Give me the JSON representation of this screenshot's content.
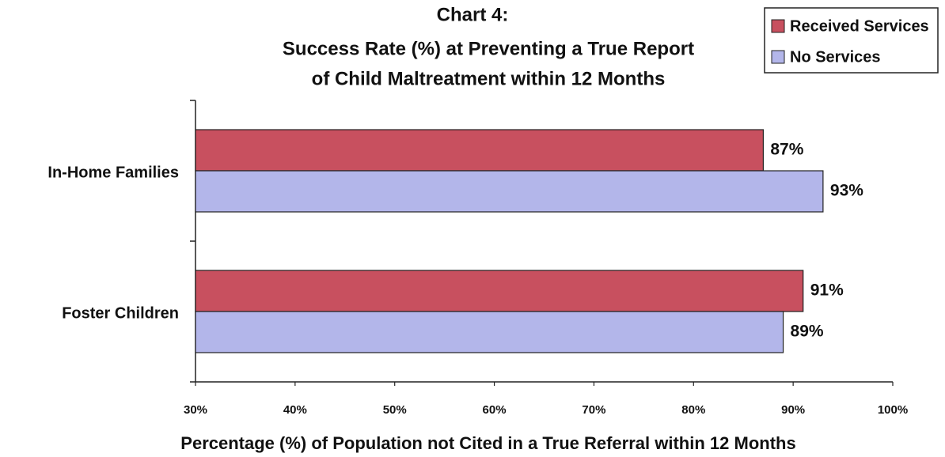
{
  "chart_data": {
    "type": "bar",
    "orientation": "horizontal",
    "title": [
      "Chart 4:",
      "Success Rate (%) at Preventing a True Report",
      "of Child Maltreatment within 12 Months"
    ],
    "xlabel": "Percentage (%) of Population not Cited in a True Referral within 12 Months",
    "categories": [
      "In-Home Families",
      "Foster Children"
    ],
    "series": [
      {
        "name": "Received Services",
        "color": "#c8505f",
        "values": [
          87,
          91
        ],
        "value_labels": [
          "87%",
          "91%"
        ]
      },
      {
        "name": "No Services",
        "color": "#b3b6ea",
        "values": [
          93,
          89
        ],
        "value_labels": [
          "93%",
          "89%"
        ]
      }
    ],
    "xlim": [
      30,
      100
    ],
    "xticks": [
      {
        "value": 30,
        "label": "30%"
      },
      {
        "value": 40,
        "label": "40%"
      },
      {
        "value": 50,
        "label": "50%"
      },
      {
        "value": 60,
        "label": "60%"
      },
      {
        "value": 70,
        "label": "70%"
      },
      {
        "value": 80,
        "label": "80%"
      },
      {
        "value": 90,
        "label": "90%"
      },
      {
        "value": 100,
        "label": "100%"
      }
    ],
    "grid": false,
    "legend": "top-right"
  }
}
